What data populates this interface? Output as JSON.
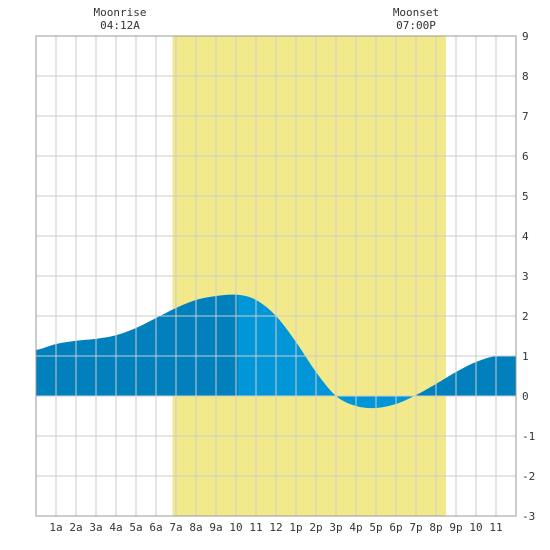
{
  "chart_data": {
    "type": "area",
    "title": "",
    "xlabel": "",
    "ylabel": "",
    "ylim": [
      -3,
      9
    ],
    "xlim": [
      0,
      24
    ],
    "yticks": [
      "-3",
      "-2",
      "-1",
      "0",
      "1",
      "2",
      "3",
      "4",
      "5",
      "6",
      "7",
      "8",
      "9"
    ],
    "xticks": [
      "1a",
      "2a",
      "3a",
      "4a",
      "5a",
      "6a",
      "7a",
      "8a",
      "9a",
      "10",
      "11",
      "12",
      "1p",
      "2p",
      "3p",
      "4p",
      "5p",
      "6p",
      "7p",
      "8p",
      "9p",
      "10",
      "11"
    ],
    "grid": true,
    "daylight": {
      "start_hour": 6.83,
      "end_hour": 20.5
    },
    "moon": {
      "rise_label": "Moonrise",
      "rise_time": "04:12A",
      "rise_hour": 4.2,
      "set_label": "Moonset",
      "set_time": "07:00P",
      "set_hour": 19.0
    },
    "tide": {
      "x": [
        0,
        1,
        2,
        3,
        4,
        5,
        6,
        7,
        8,
        9,
        10.1,
        11,
        12,
        13,
        14,
        15,
        16,
        17,
        18,
        18.9,
        20,
        21,
        22,
        23,
        24
      ],
      "y": [
        1.15,
        1.3,
        1.38,
        1.43,
        1.52,
        1.7,
        1.95,
        2.2,
        2.4,
        2.5,
        2.53,
        2.4,
        2.0,
        1.35,
        0.6,
        0.0,
        -0.25,
        -0.3,
        -0.2,
        0.0,
        0.3,
        0.6,
        0.85,
        1.0,
        1.0
      ]
    },
    "colors": {
      "daylight": "#f2ea8a",
      "tide_light": "#0096d8",
      "tide_dark": "#0080bd",
      "grid": "#cccccc",
      "border": "#999999",
      "text": "#333333"
    }
  }
}
